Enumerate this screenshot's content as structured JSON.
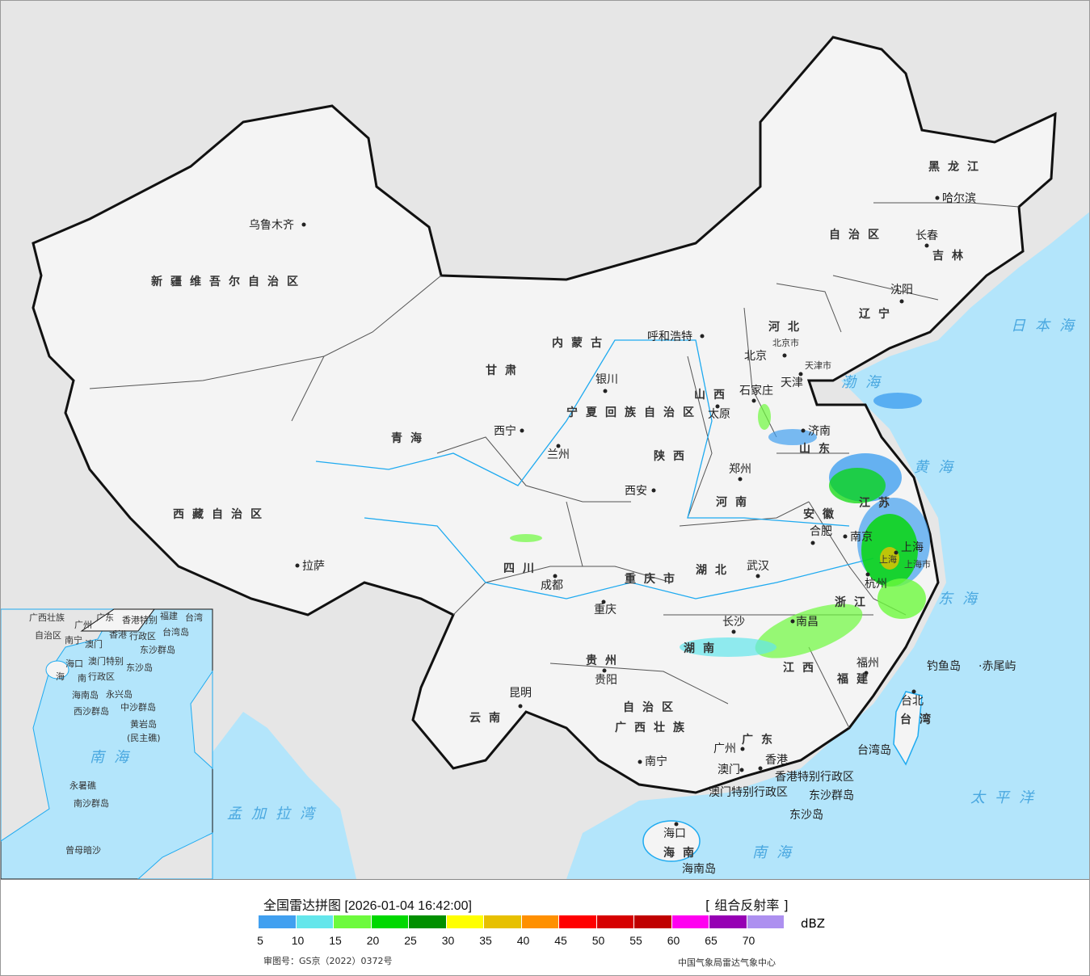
{
  "map": {
    "colors": {
      "sea": "#b3e5fb",
      "outside_land": "#e6e6e6",
      "china_land": "#f4f4f4",
      "border": "#111111",
      "river": "#1eaaf0",
      "city_dot": "#222222"
    },
    "provinces": [
      "新疆维吾尔自治区",
      "西藏自治区",
      "青海",
      "甘肃",
      "内蒙古",
      "自治区",
      "黑龙江",
      "吉林",
      "辽宁",
      "河北",
      "山西",
      "山东",
      "河南",
      "陕西",
      "四川",
      "重庆市",
      "湖北",
      "安徽",
      "江苏",
      "浙江",
      "江西",
      "湖南",
      "贵州",
      "云南",
      "广西壮族",
      "自治区",
      "广东",
      "福建",
      "海南",
      "台湾",
      "宁夏回族自治区"
    ],
    "cities": [
      "乌鲁木齐",
      "拉萨",
      "西宁",
      "兰州",
      "银川",
      "呼和浩特",
      "北京",
      "天津",
      "石家庄",
      "太原",
      "济南",
      "郑州",
      "西安",
      "成都",
      "重庆",
      "武汉",
      "合肥",
      "南京",
      "上海",
      "杭州",
      "长沙",
      "南昌",
      "福州",
      "贵阳",
      "昆明",
      "南宁",
      "广州",
      "澳门",
      "香港",
      "海口",
      "台北",
      "哈尔滨",
      "长春",
      "沈阳"
    ],
    "other_labels": [
      "北京市",
      "天津市",
      "上海市",
      "上海",
      "香港特别行政区",
      "澳门特别行政区",
      "东沙群岛",
      "东沙岛",
      "钓鱼岛",
      "·赤尾屿",
      "台湾岛",
      "海南岛"
    ],
    "seas": [
      "日本海",
      "渤海",
      "黄海",
      "东海",
      "太平洋",
      "南海",
      "孟加拉湾"
    ],
    "inset": {
      "labels": [
        "广西壮族",
        "自治区",
        "南宁",
        "广东",
        "广州",
        "澳门",
        "香港",
        "香港特别",
        "行政区",
        "澳门特别",
        "行政区",
        "台湾",
        "台湾岛",
        "东沙群岛",
        "东沙岛",
        "海口",
        "海",
        "南",
        "海南岛",
        "西沙群岛",
        "永兴岛",
        "中沙群岛",
        "黄岩岛",
        "(民主礁)",
        "南海",
        "永暑礁",
        "南沙群岛",
        "曾母暗沙",
        "福建"
      ]
    }
  },
  "legend": {
    "title": "全国雷达拼图 [2026-01-04 16:42:00]",
    "product": "[ 组合反射率 ]",
    "unit": "dBZ",
    "colors": [
      "#41a0f0",
      "#64e6eb",
      "#6dfa3d",
      "#00d800",
      "#019000",
      "#ffff00",
      "#e7c000",
      "#ff9000",
      "#ff0000",
      "#d60000",
      "#c00000",
      "#ff00f0",
      "#9600b4",
      "#ad90f0"
    ],
    "ticks": [
      "5",
      "10",
      "15",
      "20",
      "25",
      "30",
      "35",
      "40",
      "45",
      "50",
      "55",
      "60",
      "65",
      "70"
    ],
    "approval": "审图号：GS京（2022）0372号",
    "org": "中国气象局雷达气象中心"
  }
}
